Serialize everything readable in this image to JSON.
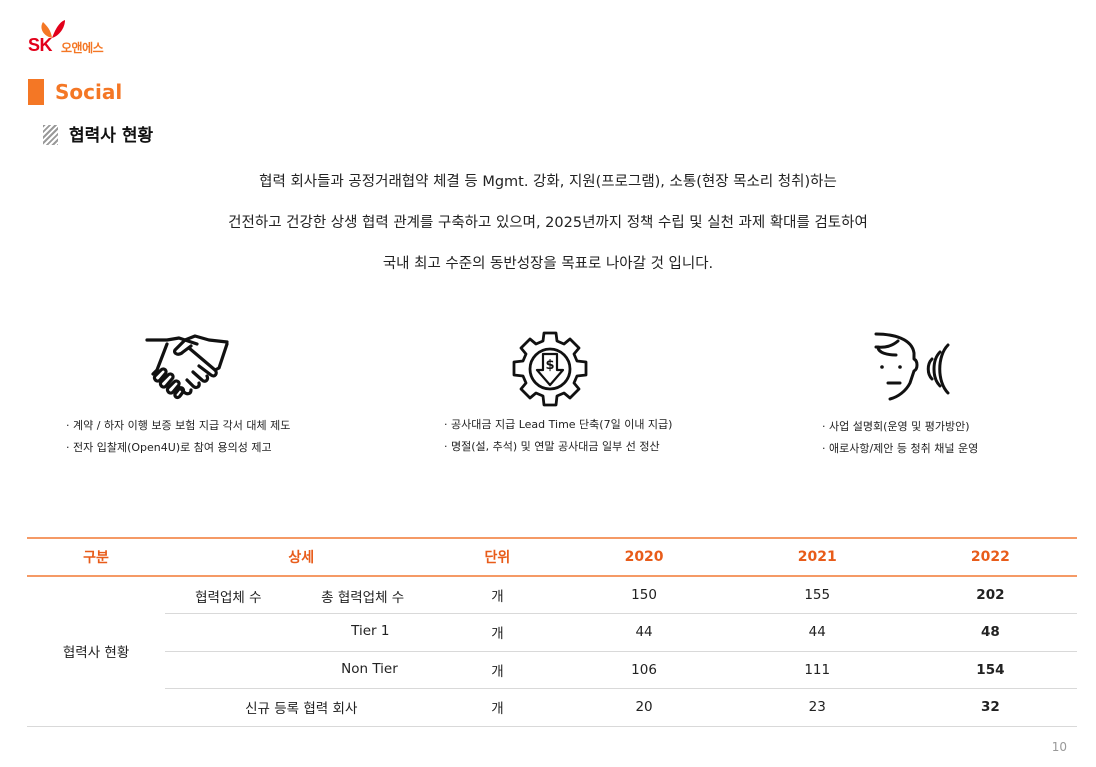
{
  "logo": {
    "sk": "SK",
    "brand": "오앤에스"
  },
  "section": {
    "title": "Social"
  },
  "subsection": {
    "title": "협력사 현황"
  },
  "intro": [
    "협력 회사들과 공정거래협약 체결 등 Mgmt. 강화, 지원(프로그램), 소통(현장 목소리 청취)하는",
    "건전하고 건강한 상생 협력 관계를 구축하고 있으며, 2025년까지 정책 수립 및 실천 과제 확대를 검토하여",
    "국내 최고 수준의 동반성장을 목표로 나아갈 것 입니다."
  ],
  "pillars": [
    {
      "icon": "handshake-icon",
      "bullets": [
        "계약 / 하자 이행 보증 보험 지급 각서 대체 제도",
        "전자 입찰제(Open4U)로 참여 용의성 제고"
      ]
    },
    {
      "icon": "gear-dollar-icon",
      "bullets": [
        "공사대금 지급 Lead Time 단축(7일 이내 지급)",
        "명절(설, 추석) 및 연말 공사대금 일부 선 정산"
      ]
    },
    {
      "icon": "speaking-head-icon",
      "bullets": [
        "사업 설명회(운영 및 평가방안)",
        "애로사항/제안 등 청취 채널 운영"
      ]
    }
  ],
  "table": {
    "headers": [
      "구분",
      "상세",
      "단위",
      "2020",
      "2021",
      "2022"
    ],
    "group_label": "협력사 현황",
    "rows": [
      {
        "detail_main": "협력업체 수",
        "detail_sub": "총 협력업체 수",
        "unit": "개",
        "y2020": "150",
        "y2021": "155",
        "y2022": "202"
      },
      {
        "detail_sub": "Tier 1",
        "unit": "개",
        "y2020": "44",
        "y2021": "44",
        "y2022": "48"
      },
      {
        "detail_sub": "Non Tier",
        "unit": "개",
        "y2020": "106",
        "y2021": "111",
        "y2022": "154"
      },
      {
        "detail_full": "신규 등록 협력 회사",
        "unit": "개",
        "y2020": "20",
        "y2021": "23",
        "y2022": "32"
      }
    ]
  },
  "page_number": "10",
  "colors": {
    "accent": "#f47725",
    "header_text": "#e85c1a",
    "sk_red": "#e2001a"
  }
}
